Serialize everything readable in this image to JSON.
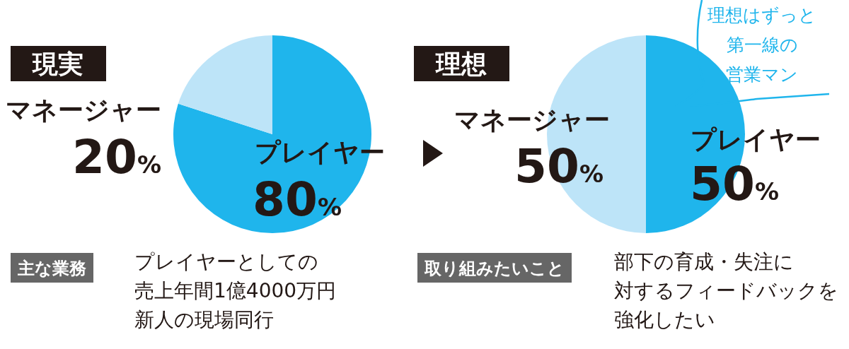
{
  "chart_data": [
    {
      "type": "pie",
      "title": "現実",
      "categories": [
        "プレイヤー",
        "マネージャー"
      ],
      "values": [
        80,
        20
      ],
      "colors": [
        "#1fb5ec",
        "#bde4f8"
      ],
      "value_labels": [
        "80%",
        "20%"
      ],
      "annotations": [
        "主な業務",
        "プレイヤーとしての",
        "売上年間1億4000万円",
        "新人の現場同行"
      ]
    },
    {
      "type": "pie",
      "title": "理想",
      "categories": [
        "プレイヤー",
        "マネージャー"
      ],
      "values": [
        50,
        50
      ],
      "colors": [
        "#1fb5ec",
        "#bde4f8"
      ],
      "value_labels": [
        "50%",
        "50%"
      ],
      "annotations": [
        "取り組みたいこと",
        "部下の育成・失注に",
        "対するフィードバックを",
        "強化したい",
        "理想はずっと",
        "第一線の",
        "営業マン"
      ]
    }
  ]
}
